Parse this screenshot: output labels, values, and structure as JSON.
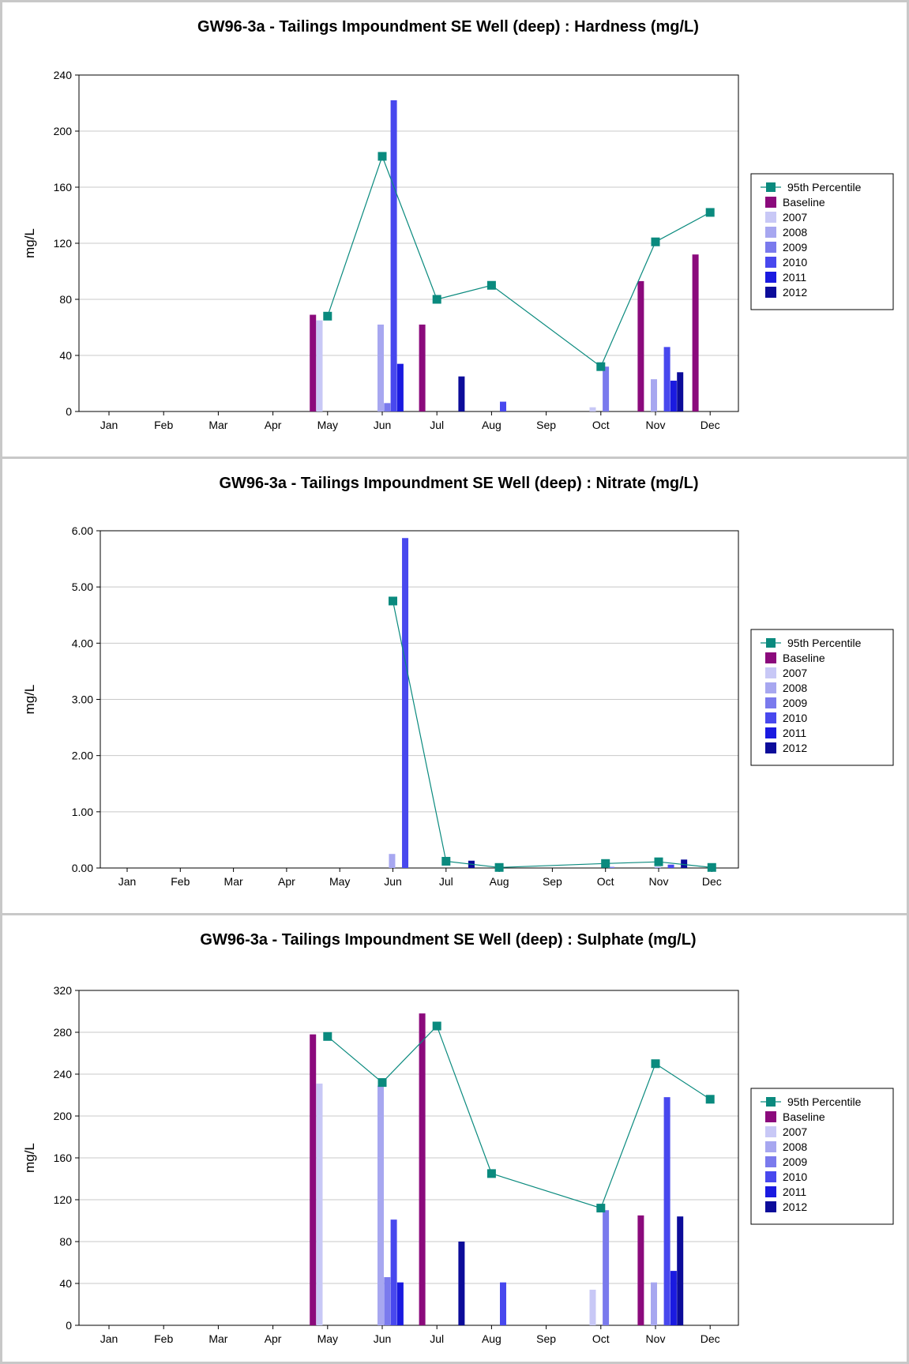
{
  "colors": {
    "p95": "#0a8a7e",
    "Baseline": "#8b0a7c",
    "2007": "#c8c8f6",
    "2008": "#a7a7f0",
    "2009": "#7a7aed",
    "2010": "#4848ee",
    "2011": "#1a1ae0",
    "2012": "#0c0c9a",
    "grid": "#c8c8c8",
    "axis": "#000000",
    "border": "#c8c8c8"
  },
  "chart_data": [
    {
      "type": "bar",
      "title": "GW96-3a - Tailings Impoundment SE Well (deep) : Hardness (mg/L)",
      "ylabel": "mg/L",
      "ylim": [
        0,
        240
      ],
      "yticks": [
        "0",
        "40",
        "80",
        "120",
        "160",
        "200",
        "240"
      ],
      "categories": [
        "Jan",
        "Feb",
        "Mar",
        "Apr",
        "May",
        "Jun",
        "Jul",
        "Aug",
        "Sep",
        "Oct",
        "Nov",
        "Dec"
      ],
      "legend": [
        "95th Percentile",
        "Baseline",
        "2007",
        "2008",
        "2009",
        "2010",
        "2011",
        "2012"
      ],
      "series": [
        {
          "name": "95th Percentile",
          "kind": "line",
          "values": [
            null,
            null,
            null,
            null,
            68,
            182,
            80,
            90,
            null,
            32,
            121,
            142
          ]
        },
        {
          "name": "Baseline",
          "values": [
            null,
            null,
            null,
            null,
            69,
            null,
            62,
            null,
            null,
            null,
            93,
            112
          ]
        },
        {
          "name": "2007",
          "values": [
            null,
            null,
            null,
            null,
            65,
            null,
            null,
            null,
            null,
            3,
            null,
            null
          ]
        },
        {
          "name": "2008",
          "values": [
            null,
            null,
            null,
            null,
            null,
            62,
            null,
            null,
            null,
            null,
            23,
            null
          ]
        },
        {
          "name": "2009",
          "values": [
            null,
            null,
            null,
            null,
            null,
            6,
            null,
            null,
            null,
            32,
            null,
            null
          ]
        },
        {
          "name": "2010",
          "values": [
            null,
            null,
            null,
            null,
            null,
            222,
            null,
            7,
            null,
            null,
            46,
            null
          ]
        },
        {
          "name": "2011",
          "values": [
            null,
            null,
            null,
            null,
            null,
            34,
            null,
            null,
            null,
            null,
            22,
            null
          ]
        },
        {
          "name": "2012",
          "values": [
            null,
            null,
            null,
            null,
            null,
            null,
            25,
            null,
            null,
            null,
            28,
            null
          ]
        }
      ]
    },
    {
      "type": "bar",
      "title": "GW96-3a - Tailings Impoundment SE Well (deep) : Nitrate (mg/L)",
      "ylabel": "mg/L",
      "ylim": [
        0,
        6
      ],
      "yticks": [
        "0.00",
        "1.00",
        "2.00",
        "3.00",
        "4.00",
        "5.00",
        "6.00"
      ],
      "categories": [
        "Jan",
        "Feb",
        "Mar",
        "Apr",
        "May",
        "Jun",
        "Jul",
        "Aug",
        "Sep",
        "Oct",
        "Nov",
        "Dec"
      ],
      "legend": [
        "95th Percentile",
        "Baseline",
        "2007",
        "2008",
        "2009",
        "2010",
        "2011",
        "2012"
      ],
      "series": [
        {
          "name": "95th Percentile",
          "kind": "line",
          "values": [
            null,
            null,
            null,
            null,
            null,
            4.75,
            0.12,
            0.01,
            null,
            0.08,
            0.11,
            0.01
          ]
        },
        {
          "name": "Baseline",
          "values": [
            null,
            null,
            null,
            null,
            null,
            null,
            null,
            null,
            null,
            null,
            null,
            null
          ]
        },
        {
          "name": "2007",
          "values": [
            null,
            null,
            null,
            null,
            null,
            null,
            null,
            null,
            null,
            null,
            null,
            null
          ]
        },
        {
          "name": "2008",
          "values": [
            null,
            null,
            null,
            null,
            null,
            0.25,
            null,
            null,
            null,
            null,
            0.02,
            null
          ]
        },
        {
          "name": "2009",
          "values": [
            null,
            null,
            null,
            null,
            null,
            null,
            null,
            null,
            null,
            0.02,
            null,
            null
          ]
        },
        {
          "name": "2010",
          "values": [
            null,
            null,
            null,
            null,
            null,
            5.87,
            null,
            null,
            null,
            null,
            0.06,
            null
          ]
        },
        {
          "name": "2011",
          "values": [
            null,
            null,
            null,
            null,
            null,
            null,
            null,
            null,
            null,
            null,
            null,
            null
          ]
        },
        {
          "name": "2012",
          "values": [
            null,
            null,
            null,
            null,
            null,
            null,
            0.13,
            null,
            null,
            null,
            0.15,
            null
          ]
        }
      ]
    },
    {
      "type": "bar",
      "title": "GW96-3a - Tailings Impoundment SE Well (deep) : Sulphate (mg/L)",
      "ylabel": "mg/L",
      "ylim": [
        0,
        320
      ],
      "yticks": [
        "0",
        "40",
        "80",
        "120",
        "160",
        "200",
        "240",
        "280",
        "320"
      ],
      "categories": [
        "Jan",
        "Feb",
        "Mar",
        "Apr",
        "May",
        "Jun",
        "Jul",
        "Aug",
        "Sep",
        "Oct",
        "Nov",
        "Dec"
      ],
      "legend": [
        "95th Percentile",
        "Baseline",
        "2007",
        "2008",
        "2009",
        "2010",
        "2011",
        "2012"
      ],
      "series": [
        {
          "name": "95th Percentile",
          "kind": "line",
          "values": [
            null,
            null,
            null,
            null,
            276,
            232,
            286,
            145,
            null,
            112,
            250,
            216
          ]
        },
        {
          "name": "Baseline",
          "values": [
            null,
            null,
            null,
            null,
            278,
            null,
            298,
            null,
            null,
            null,
            105,
            null
          ]
        },
        {
          "name": "2007",
          "values": [
            null,
            null,
            null,
            null,
            231,
            null,
            null,
            null,
            null,
            34,
            null,
            null
          ]
        },
        {
          "name": "2008",
          "values": [
            null,
            null,
            null,
            null,
            null,
            229,
            null,
            null,
            null,
            null,
            41,
            null
          ]
        },
        {
          "name": "2009",
          "values": [
            null,
            null,
            null,
            null,
            null,
            46,
            null,
            null,
            null,
            110,
            null,
            null
          ]
        },
        {
          "name": "2010",
          "values": [
            null,
            null,
            null,
            null,
            null,
            101,
            null,
            41,
            null,
            null,
            218,
            null
          ]
        },
        {
          "name": "2011",
          "values": [
            null,
            null,
            null,
            null,
            null,
            41,
            null,
            null,
            null,
            null,
            52,
            null
          ]
        },
        {
          "name": "2012",
          "values": [
            null,
            null,
            null,
            null,
            null,
            null,
            80,
            null,
            null,
            null,
            104,
            null
          ]
        }
      ]
    }
  ]
}
